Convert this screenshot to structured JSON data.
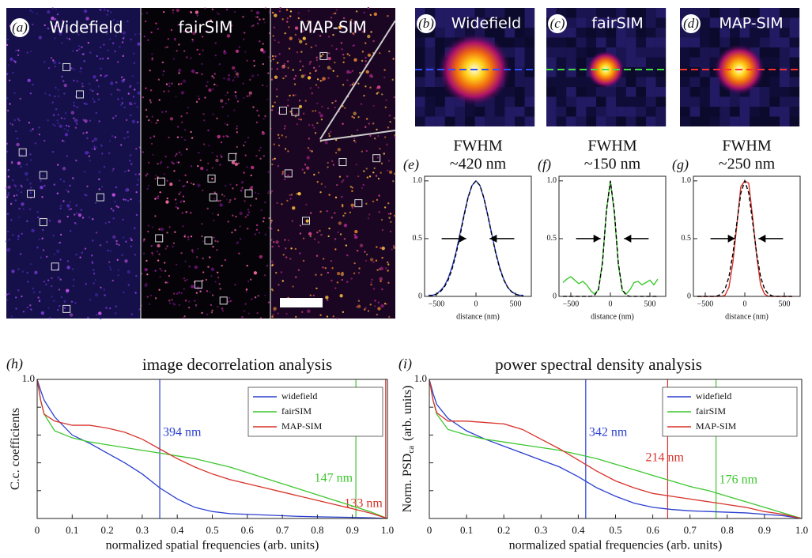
{
  "images": {
    "a": {
      "label": "(a)",
      "titles": [
        "Widefield",
        "fairSIM",
        "MAP-SIM"
      ]
    },
    "zooms": [
      {
        "label": "(b)",
        "title": "Widefield"
      },
      {
        "label": "(c)",
        "title": "fairSIM"
      },
      {
        "label": "(d)",
        "title": "MAP-SIM"
      }
    ]
  },
  "chart_data": [
    {
      "type": "line",
      "panel": "(e)",
      "title": [
        "FWHM",
        "~420 nm"
      ],
      "xlabel": "distance (nm)",
      "x": [
        -600,
        -550,
        -500,
        -450,
        -400,
        -350,
        -300,
        -250,
        -200,
        -150,
        -100,
        -50,
        0,
        50,
        100,
        150,
        200,
        250,
        300,
        350,
        400,
        450,
        500,
        550,
        600
      ],
      "series": [
        {
          "color": "#2a3fd0",
          "values": [
            0.01,
            0.01,
            0.02,
            0.05,
            0.09,
            0.16,
            0.26,
            0.39,
            0.55,
            0.71,
            0.86,
            0.96,
            1.0,
            0.96,
            0.85,
            0.7,
            0.54,
            0.38,
            0.25,
            0.15,
            0.08,
            0.04,
            0.02,
            0.01,
            0.01
          ]
        },
        {
          "color": "#000000",
          "dashed": true,
          "values": [
            0.003,
            0.008,
            0.019,
            0.041,
            0.08,
            0.145,
            0.242,
            0.373,
            0.532,
            0.701,
            0.854,
            0.961,
            1.0,
            0.961,
            0.854,
            0.701,
            0.532,
            0.373,
            0.242,
            0.145,
            0.08,
            0.041,
            0.019,
            0.008,
            0.003
          ]
        }
      ],
      "xlim": [
        -650,
        700
      ],
      "ylim": [
        0,
        1.04
      ],
      "xticks": [
        {
          "value": -500,
          "label": "−500"
        },
        0,
        500
      ],
      "yticks": [
        0,
        0.5,
        {
          "value": 1,
          "label": "1.0"
        }
      ]
    },
    {
      "type": "line",
      "panel": "(f)",
      "title": [
        "FWHM",
        "~150 nm"
      ],
      "xlabel": "distance (nm)",
      "x": [
        -600,
        -550,
        -500,
        -450,
        -400,
        -350,
        -300,
        -250,
        -200,
        -150,
        -100,
        -50,
        0,
        50,
        100,
        150,
        200,
        250,
        300,
        350,
        400,
        450,
        500,
        550,
        600
      ],
      "series": [
        {
          "color": "#3cc72e",
          "values": [
            0.12,
            0.15,
            0.17,
            0.14,
            0.11,
            0.13,
            0.1,
            0.05,
            0.02,
            0.06,
            0.3,
            0.74,
            1.0,
            0.72,
            0.28,
            0.05,
            0.02,
            0.06,
            0.12,
            0.13,
            0.1,
            0.12,
            0.14,
            0.1,
            0.15
          ]
        },
        {
          "color": "#000000",
          "dashed": true,
          "values": [
            0,
            0,
            0,
            0,
            0,
            0,
            0,
            0,
            0.01,
            0.06,
            0.29,
            0.74,
            1.0,
            0.74,
            0.29,
            0.06,
            0.01,
            0,
            0,
            0,
            0,
            0,
            0,
            0,
            0
          ]
        }
      ],
      "xlim": [
        -650,
        700
      ],
      "ylim": [
        0,
        1.04
      ],
      "xticks": [
        {
          "value": -500,
          "label": "−500"
        },
        0,
        500
      ],
      "yticks": [
        0,
        0.5,
        {
          "value": 1,
          "label": "1.0"
        }
      ]
    },
    {
      "type": "line",
      "panel": "(g)",
      "title": [
        "FWHM",
        "~250 nm"
      ],
      "xlabel": "distance (nm)",
      "x": [
        -600,
        -550,
        -500,
        -450,
        -400,
        -350,
        -300,
        -250,
        -200,
        -150,
        -100,
        -50,
        0,
        50,
        100,
        150,
        200,
        250,
        300,
        350,
        400,
        450,
        500,
        550,
        600
      ],
      "series": [
        {
          "color": "#d8322a",
          "values": [
            0,
            0,
            0,
            0,
            0,
            0,
            0,
            0.01,
            0.08,
            0.3,
            0.62,
            0.95,
            1.0,
            0.98,
            0.68,
            0.35,
            0.1,
            0.02,
            0,
            0,
            0,
            0,
            0,
            0,
            0
          ]
        },
        {
          "color": "#000000",
          "dashed": true,
          "values": [
            0,
            0,
            0,
            0,
            0,
            0.004,
            0.018,
            0.063,
            0.17,
            0.37,
            0.64,
            0.895,
            1.0,
            0.895,
            0.64,
            0.37,
            0.17,
            0.063,
            0.018,
            0.004,
            0,
            0,
            0,
            0,
            0
          ]
        }
      ],
      "xlim": [
        -650,
        700
      ],
      "ylim": [
        0,
        1.04
      ],
      "xticks": [
        {
          "value": -500,
          "label": "−500"
        },
        0,
        500
      ],
      "yticks": [
        0,
        0.5,
        {
          "value": 1,
          "label": "1.0"
        }
      ]
    },
    {
      "type": "line",
      "panel": "(h)",
      "title": "image decorrelation analysis",
      "ylabel": {
        "main": "C.c. coefficients"
      },
      "xlabel": "normalized spatial frequencies (arb. units)",
      "x": [
        0,
        0.01,
        0.02,
        0.05,
        0.1,
        0.15,
        0.2,
        0.25,
        0.3,
        0.35,
        0.4,
        0.45,
        0.5,
        0.55,
        0.6,
        0.65,
        0.7,
        0.75,
        0.8,
        0.85,
        0.9,
        0.95,
        1.0
      ],
      "series": [
        {
          "name": "widefield",
          "color": "#2a3fd0",
          "values": [
            1.0,
            0.92,
            0.85,
            0.73,
            0.6,
            0.54,
            0.47,
            0.4,
            0.32,
            0.22,
            0.14,
            0.08,
            0.05,
            0.035,
            0.03,
            0.025,
            0.02,
            0.015,
            0.012,
            0.01,
            0.008,
            0.005,
            0.0
          ]
        },
        {
          "name": "fairSIM",
          "color": "#3cc72e",
          "values": [
            1.0,
            0.85,
            0.75,
            0.63,
            0.58,
            0.55,
            0.53,
            0.51,
            0.49,
            0.47,
            0.45,
            0.43,
            0.4,
            0.37,
            0.33,
            0.29,
            0.25,
            0.21,
            0.17,
            0.13,
            0.09,
            0.05,
            0.0
          ]
        },
        {
          "name": "MAP-SIM",
          "color": "#d8322a",
          "values": [
            1.0,
            0.85,
            0.75,
            0.7,
            0.67,
            0.67,
            0.65,
            0.62,
            0.57,
            0.5,
            0.43,
            0.37,
            0.32,
            0.28,
            0.25,
            0.22,
            0.19,
            0.16,
            0.13,
            0.1,
            0.07,
            0.04,
            0.0
          ]
        }
      ],
      "vlines": [
        {
          "x": 0.35,
          "color": "#2a3fd0",
          "label": "394 nm"
        },
        {
          "x": 0.91,
          "color": "#3cc72e",
          "label": "147 nm"
        },
        {
          "x": 0.995,
          "color": "#d8322a",
          "label": "133 nm"
        }
      ],
      "legend": "upper right",
      "xlim": [
        0,
        1
      ],
      "ylim": [
        0,
        1
      ],
      "xticks": [
        0,
        0.1,
        0.2,
        0.3,
        0.4,
        0.5,
        0.6,
        0.7,
        0.8,
        0.9,
        {
          "value": 1,
          "label": "1.0"
        }
      ],
      "yticks": [
        {
          "value": 1,
          "label": "1.0"
        }
      ],
      "yminorticks": [
        0.2,
        0.4,
        0.6,
        0.8
      ]
    },
    {
      "type": "line",
      "panel": "(i)",
      "title": "power spectral density analysis",
      "ylabel": {
        "main": "Norm. PSD",
        "sub": "ca",
        "rest": "(arb. units)"
      },
      "xlabel": "normalized spatial frequencies (arb. units)",
      "x": [
        0,
        0.01,
        0.02,
        0.05,
        0.1,
        0.15,
        0.2,
        0.25,
        0.3,
        0.35,
        0.4,
        0.45,
        0.5,
        0.55,
        0.6,
        0.65,
        0.7,
        0.75,
        0.8,
        0.85,
        0.9,
        0.95,
        1.0
      ],
      "series": [
        {
          "name": "widefield",
          "color": "#2a3fd0",
          "values": [
            1.0,
            0.9,
            0.82,
            0.72,
            0.63,
            0.57,
            0.52,
            0.47,
            0.42,
            0.37,
            0.3,
            0.22,
            0.16,
            0.11,
            0.08,
            0.065,
            0.055,
            0.05,
            0.045,
            0.04,
            0.03,
            0.02,
            0.0
          ]
        },
        {
          "name": "fairSIM",
          "color": "#3cc72e",
          "values": [
            1.0,
            0.85,
            0.75,
            0.64,
            0.6,
            0.57,
            0.55,
            0.53,
            0.51,
            0.49,
            0.46,
            0.43,
            0.39,
            0.35,
            0.31,
            0.27,
            0.23,
            0.2,
            0.16,
            0.12,
            0.08,
            0.04,
            0.0
          ]
        },
        {
          "name": "MAP-SIM",
          "color": "#d8322a",
          "values": [
            1.0,
            0.85,
            0.76,
            0.7,
            0.7,
            0.69,
            0.68,
            0.64,
            0.57,
            0.5,
            0.42,
            0.34,
            0.27,
            0.22,
            0.18,
            0.16,
            0.14,
            0.12,
            0.1,
            0.08,
            0.05,
            0.03,
            0.0
          ]
        }
      ],
      "vlines": [
        {
          "x": 0.42,
          "color": "#2a3fd0",
          "label": "342 nm"
        },
        {
          "x": 0.64,
          "color": "#d8322a",
          "label": "214 nm"
        },
        {
          "x": 0.77,
          "color": "#3cc72e",
          "label": "176 nm"
        }
      ],
      "legend": "upper right",
      "xlim": [
        0,
        1
      ],
      "ylim": [
        0,
        1
      ],
      "xticks": [
        0,
        0.1,
        0.2,
        0.3,
        0.4,
        0.5,
        0.6,
        0.7,
        0.8,
        0.9,
        {
          "value": 1,
          "label": "1.0"
        }
      ],
      "yticks": [
        {
          "value": 1,
          "label": "1.0"
        }
      ],
      "yminorticks": [
        0.2,
        0.4,
        0.6,
        0.8
      ]
    }
  ]
}
